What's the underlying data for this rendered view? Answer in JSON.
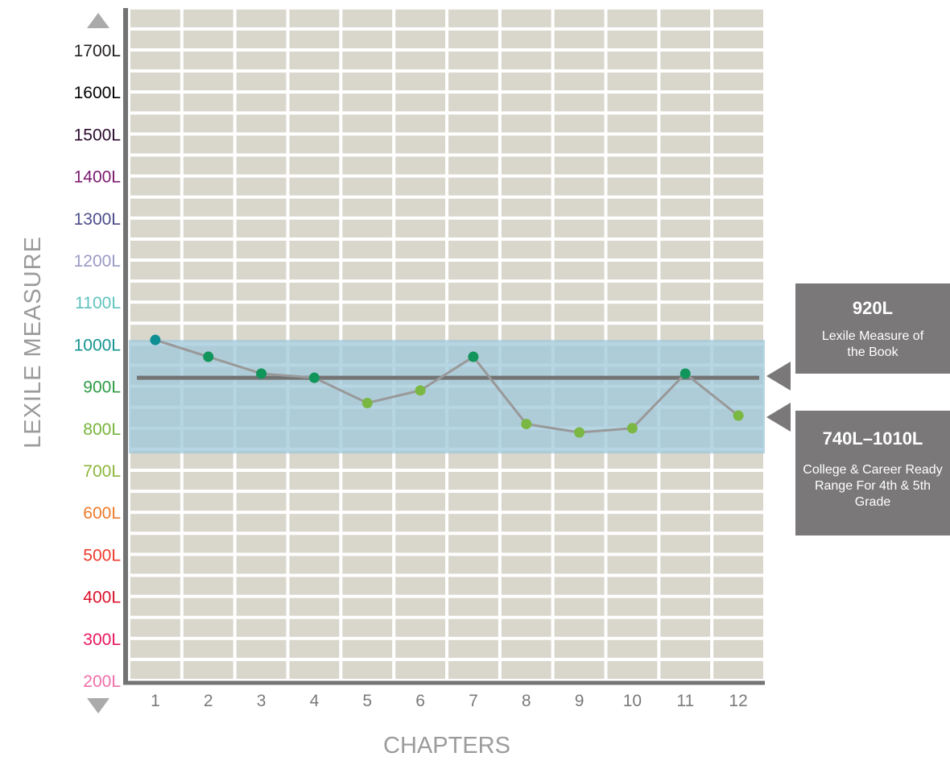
{
  "chart_data": {
    "type": "line",
    "xlabel": "CHAPTERS",
    "ylabel": "LEXILE MEASURE",
    "categories": [
      "1",
      "2",
      "3",
      "4",
      "5",
      "6",
      "7",
      "8",
      "9",
      "10",
      "11",
      "12"
    ],
    "y_ticks": [
      "1700L",
      "1600L",
      "1500L",
      "1400L",
      "1300L",
      "1200L",
      "1100L",
      "1000L",
      "900L",
      "800L",
      "700L",
      "600L",
      "500L",
      "400L",
      "300L",
      "200L"
    ],
    "ylim": [
      200,
      1700
    ],
    "series": [
      {
        "values": [
          1010,
          970,
          930,
          920,
          860,
          890,
          970,
          810,
          790,
          800,
          930,
          830
        ]
      }
    ],
    "reference_line": {
      "value": 920,
      "label": "920L",
      "caption": "Lexile Measure of the Book"
    },
    "band": {
      "min": 740,
      "max": 1010,
      "label": "740L–1010L",
      "caption": "College & Career Ready Range For 4th & 5th Grade"
    },
    "grid": true,
    "colors": {
      "background_cell": "#d9d6cc",
      "band": "#9fc8db",
      "line": "#999999",
      "reference": "#747474",
      "axis": "#737373",
      "callout": "#7a7878",
      "tick_label_colors": [
        "#231f20",
        "#000000",
        "#2b0a2e",
        "#7b1a6e",
        "#4c4c8b",
        "#9b9ac5",
        "#5fc3c0",
        "#14948f",
        "#2d9b45",
        "#77b43a",
        "#8cb63c",
        "#ee7a2a",
        "#ee3a2c",
        "#d9112b",
        "#e8175d",
        "#f06ea8"
      ],
      "point_colors": [
        "#0f8f93",
        "#11955a",
        "#11955a",
        "#11955a",
        "#7ab843",
        "#7ab843",
        "#11955a",
        "#7ab843",
        "#7ab843",
        "#7ab843",
        "#11955a",
        "#7ab843"
      ]
    }
  }
}
